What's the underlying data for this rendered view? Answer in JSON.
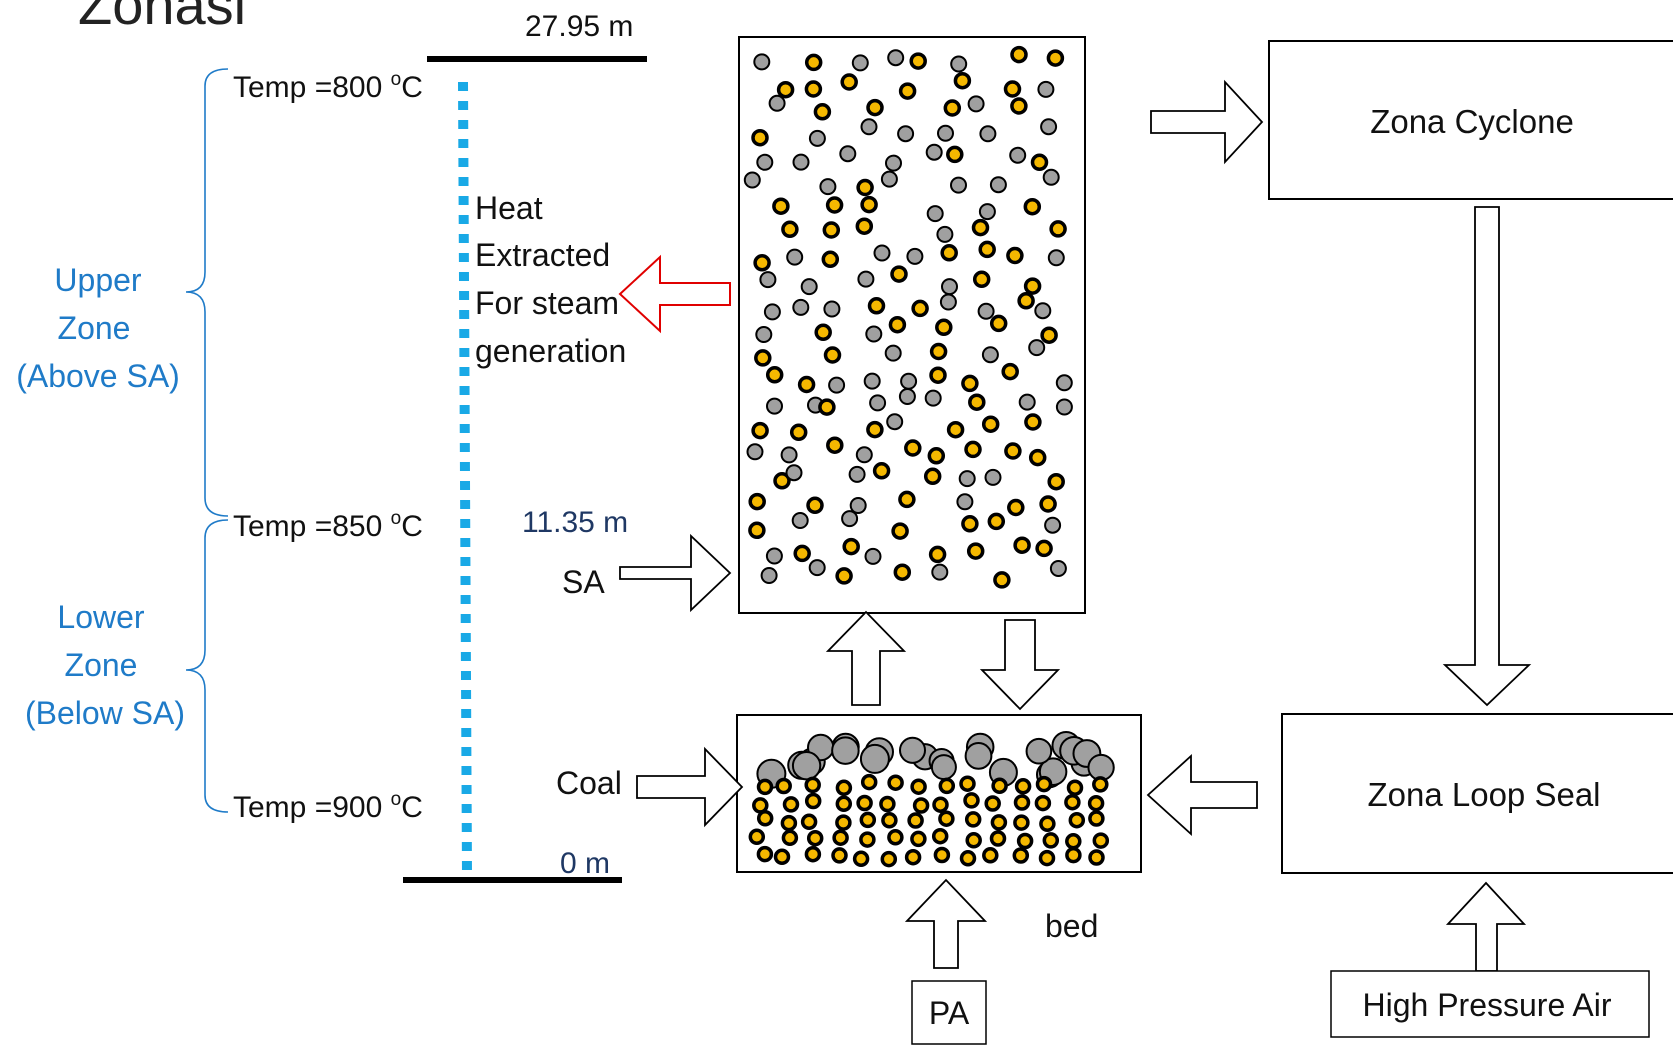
{
  "title": "Zonasi",
  "heights": {
    "top": "27.95 m",
    "sa": "11.35 m",
    "bottom": "0 m"
  },
  "temperatures": {
    "top": {
      "prefix": "Temp =800 ",
      "sup": "o",
      "unit": "C"
    },
    "mid": {
      "prefix": "Temp =850 ",
      "sup": "o",
      "unit": "C"
    },
    "bottom": {
      "prefix": "Temp =900 ",
      "sup": "o",
      "unit": "C"
    }
  },
  "upper_zone": [
    "Upper",
    "Zone",
    "(Above SA)"
  ],
  "lower_zone": [
    "Lower",
    "Zone",
    "(Below SA)"
  ],
  "heat_label": [
    "Heat",
    "Extracted",
    "For steam",
    "generation"
  ],
  "inputs": {
    "sa": "SA",
    "coal": "Coal",
    "pa": "PA",
    "high_pressure_air": "High Pressure Air"
  },
  "bed_label": "bed",
  "boxes": {
    "cyclone": "Zona Cyclone",
    "loop_seal": "Zona Loop Seal"
  },
  "colors": {
    "zone_text": "#1f7bc8",
    "height_text": "#1f3864",
    "dashed_line": "#19a9e6",
    "particle_coal": "#f5b800",
    "particle_ash": "#a0a0a0",
    "heat_arrow": "#e00000"
  }
}
